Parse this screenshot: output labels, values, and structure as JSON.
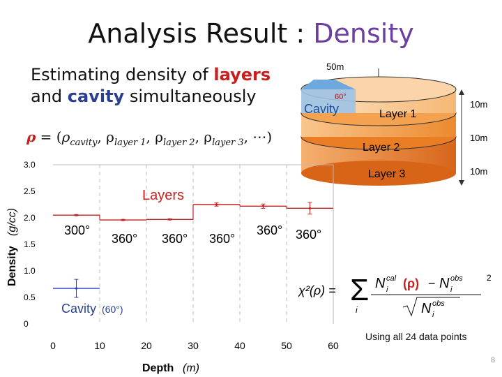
{
  "header": {
    "title_part1": "Analysis Result :",
    "title_part2": "Density",
    "subtitle_line1_prefix": "Estimating density of ",
    "subtitle_line1_highlight": "layers",
    "subtitle_line2_prefix": "and ",
    "subtitle_line2_highlight": "cavity",
    "subtitle_line2_suffix": " simultaneously"
  },
  "formula": {
    "rho_symbol": "ρ",
    "equals": " = (",
    "rho_cavity": "ρ",
    "sub_cavity": "cavity",
    "rho_layer1": ", ρ",
    "sub_layer1": "layer 1",
    "rho_layer2": ", ρ",
    "sub_layer2": "layer 2",
    "rho_layer3": ", ρ",
    "sub_layer3": "layer 3",
    "ellipsis": ", ⋯)"
  },
  "diagram": {
    "dimension_top": "50m",
    "cavity_label": "Cavity",
    "cavity_angle": "60°",
    "layer1": "Layer 1",
    "layer2": "Layer 2",
    "layer3": "Layer 3",
    "height1": "10m",
    "height2": "10m",
    "height3": "10m",
    "colors": {
      "cavity": "#5b9bd5",
      "layer1": "#f8c08a",
      "layer2": "#f08a2c",
      "layer3": "#e07020"
    }
  },
  "chi2": {
    "lhs": "χ²(ρ) =",
    "sum": "Σ",
    "index": "i",
    "n_cal": "N",
    "n_cal_sup": "cal",
    "n_cal_sub": "i",
    "rho": "(ρ)",
    "minus": "−",
    "n_obs": "N",
    "n_obs_sup": "obs",
    "n_obs_sub": "i",
    "sqrt_n": "N",
    "sqrt_sup": "obs",
    "sqrt_sub": "i",
    "power": "2"
  },
  "footnote": "Using all 24 data points",
  "page_number": "8",
  "chart_data": {
    "type": "line",
    "xlabel_text": "Depth",
    "xlabel_unit": "(m)",
    "ylabel_text": "Density",
    "ylabel_unit": "(g/cc)",
    "xlim": [
      0,
      60
    ],
    "ylim": [
      0,
      3.0
    ],
    "x_ticks": [
      "0",
      "10",
      "20",
      "30",
      "40",
      "50",
      "60"
    ],
    "y_ticks": [
      "0",
      "0.5",
      "1.0",
      "1.5",
      "2.0",
      "2.5",
      "3.0"
    ],
    "grid": "vertical dashed",
    "series": [
      {
        "name": "Layers",
        "color": "#c81e1e",
        "segments": [
          {
            "x0": 0,
            "x1": 10,
            "value": 2.05,
            "err": 0.01
          },
          {
            "x0": 10,
            "x1": 20,
            "value": 1.96,
            "err": 0.01
          },
          {
            "x0": 20,
            "x1": 30,
            "value": 1.97,
            "err": 0.01
          },
          {
            "x0": 30,
            "x1": 40,
            "value": 2.25,
            "err": 0.03
          },
          {
            "x0": 40,
            "x1": 50,
            "value": 2.22,
            "err": 0.04
          },
          {
            "x0": 50,
            "x1": 60,
            "value": 2.18,
            "err": 0.11
          }
        ]
      },
      {
        "name": "Cavity",
        "color": "#2a3fcf",
        "segments": [
          {
            "x0": 0,
            "x1": 10,
            "value": 0.67,
            "err": 0.17
          }
        ]
      }
    ],
    "annotations": {
      "layers_label": "Layers",
      "cavity_label": "Cavity",
      "cavity_angle": "(60°)",
      "angles": [
        "300°",
        "360°",
        "360°",
        "360°",
        "360°",
        "360°"
      ]
    }
  }
}
